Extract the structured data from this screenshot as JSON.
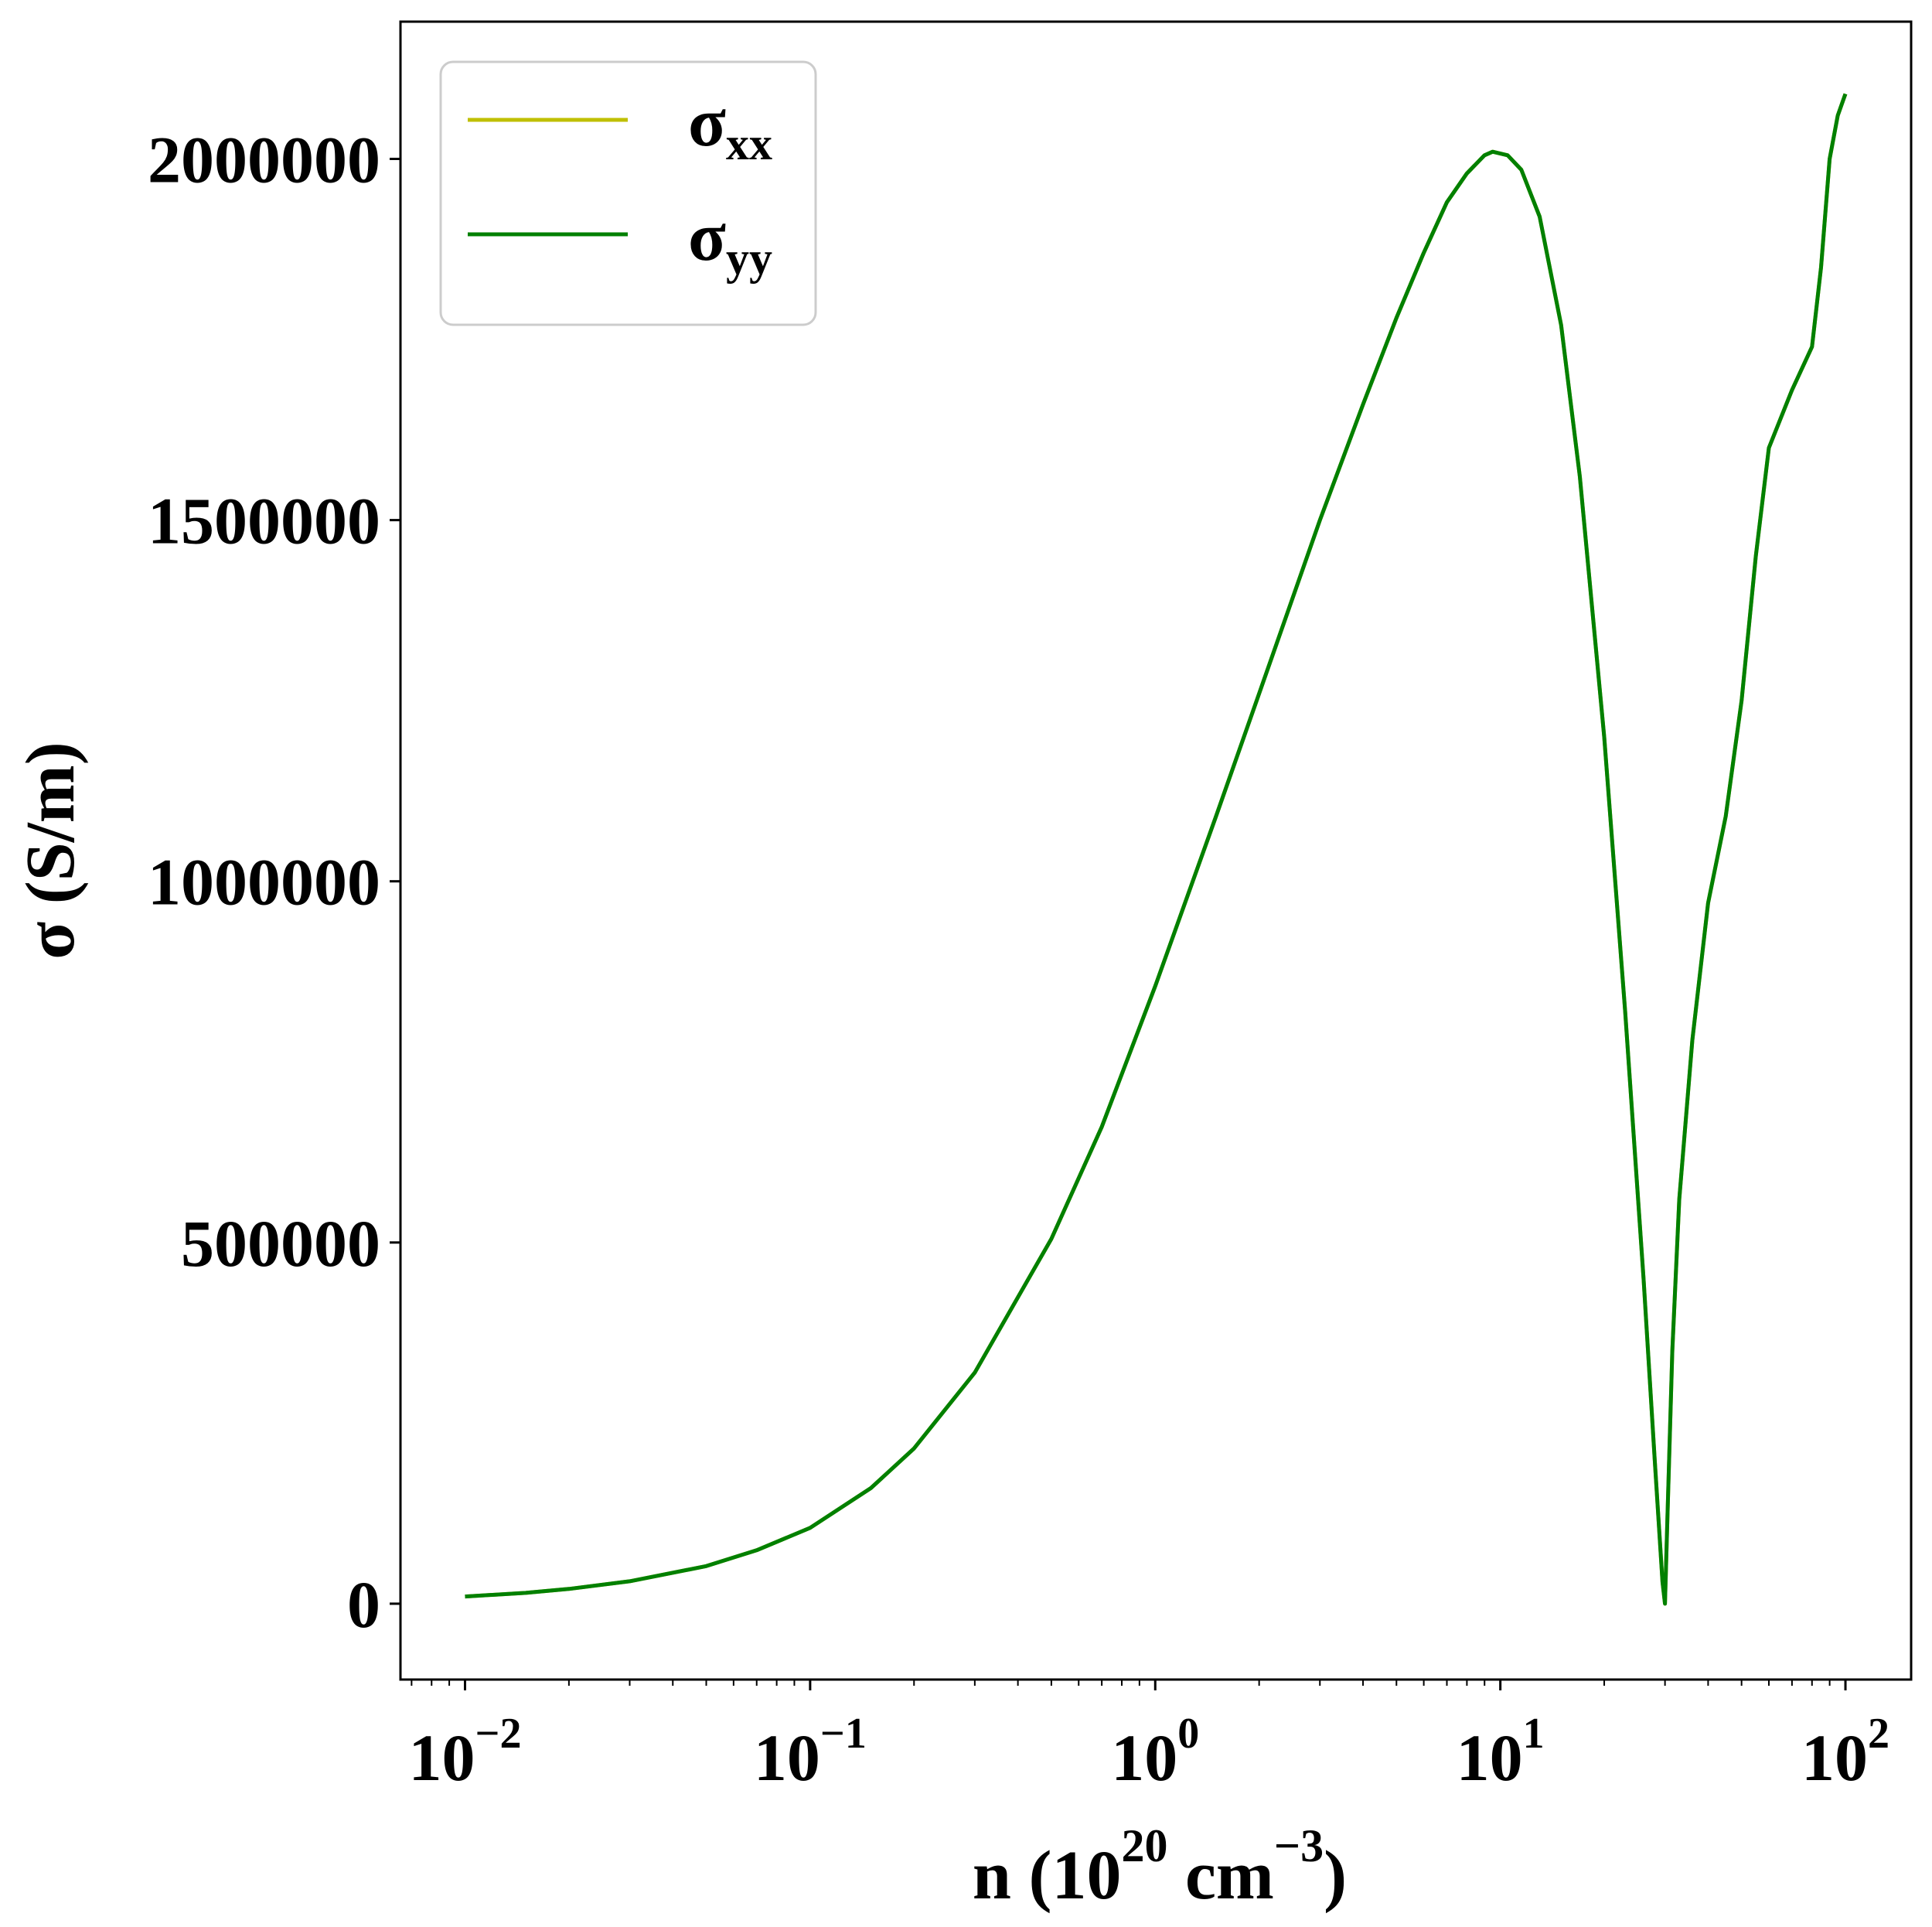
{
  "chart_data": {
    "type": "line",
    "x_scale": "log",
    "xlim": [
      0.0065,
      155
    ],
    "ylim": [
      -105000,
      2190000
    ],
    "grid": false,
    "legend_position": "top-left",
    "xlabel": {
      "main": "n (10",
      "sup1": "20",
      "mid": " cm",
      "sup2": "−3",
      "end": ")"
    },
    "ylabel": "σ (S/m)",
    "y_ticks": [
      {
        "value": 0,
        "label": "0"
      },
      {
        "value": 500000,
        "label": "500000"
      },
      {
        "value": 1000000,
        "label": "1000000"
      },
      {
        "value": 1500000,
        "label": "1500000"
      },
      {
        "value": 2000000,
        "label": "2000000"
      }
    ],
    "x_ticks": [
      {
        "value": 0.01,
        "base": "10",
        "exp": "−2"
      },
      {
        "value": 0.1,
        "base": "10",
        "exp": "−1"
      },
      {
        "value": 1,
        "base": "10",
        "exp": "0"
      },
      {
        "value": 10,
        "base": "10",
        "exp": "1"
      },
      {
        "value": 100,
        "base": "10",
        "exp": "2"
      }
    ],
    "series": [
      {
        "name": "σ",
        "sub": "xx",
        "color": "#bfbf00",
        "points": [
          [
            0.01,
            10000
          ],
          [
            0.015,
            15000
          ],
          [
            0.02,
            20500
          ],
          [
            0.03,
            31000
          ],
          [
            0.05,
            52000
          ],
          [
            0.07,
            74000
          ],
          [
            0.1,
            105000
          ],
          [
            0.15,
            160000
          ],
          [
            0.2,
            215000
          ],
          [
            0.3,
            320000
          ],
          [
            0.5,
            505000
          ],
          [
            0.7,
            660000
          ],
          [
            1.0,
            855000
          ],
          [
            1.5,
            1090000
          ],
          [
            2.0,
            1260000
          ],
          [
            3.0,
            1500000
          ],
          [
            4.0,
            1660000
          ],
          [
            5.0,
            1780000
          ],
          [
            6.0,
            1870000
          ],
          [
            7.0,
            1940000
          ],
          [
            8.0,
            1980000
          ],
          [
            9.0,
            2005000
          ],
          [
            9.5,
            2010000
          ],
          [
            10.5,
            2005000
          ],
          [
            11.5,
            1985000
          ],
          [
            13.0,
            1920000
          ],
          [
            15.0,
            1770000
          ],
          [
            17.0,
            1560000
          ],
          [
            20.0,
            1200000
          ],
          [
            23.0,
            820000
          ],
          [
            26.0,
            450000
          ],
          [
            28.0,
            200000
          ],
          [
            29.5,
            30000
          ],
          [
            30.0,
            0
          ],
          [
            30.5,
            120000
          ],
          [
            31.5,
            350000
          ],
          [
            33.0,
            560000
          ],
          [
            36.0,
            780000
          ],
          [
            40.0,
            970000
          ],
          [
            45.0,
            1090000
          ],
          [
            50.0,
            1250000
          ],
          [
            55.0,
            1450000
          ],
          [
            60.0,
            1600000
          ],
          [
            70.0,
            1680000
          ],
          [
            80.0,
            1740000
          ],
          [
            85.0,
            1850000
          ],
          [
            90.0,
            2000000
          ],
          [
            95.0,
            2060000
          ],
          [
            100.0,
            2090000
          ]
        ]
      },
      {
        "name": "σ",
        "sub": "yy",
        "color": "#008000",
        "points": [
          [
            0.01,
            10000
          ],
          [
            0.015,
            15000
          ],
          [
            0.02,
            20500
          ],
          [
            0.03,
            31000
          ],
          [
            0.05,
            52000
          ],
          [
            0.07,
            74000
          ],
          [
            0.1,
            105000
          ],
          [
            0.15,
            160000
          ],
          [
            0.2,
            215000
          ],
          [
            0.3,
            320000
          ],
          [
            0.5,
            505000
          ],
          [
            0.7,
            660000
          ],
          [
            1.0,
            855000
          ],
          [
            1.5,
            1090000
          ],
          [
            2.0,
            1260000
          ],
          [
            3.0,
            1500000
          ],
          [
            4.0,
            1660000
          ],
          [
            5.0,
            1780000
          ],
          [
            6.0,
            1870000
          ],
          [
            7.0,
            1940000
          ],
          [
            8.0,
            1980000
          ],
          [
            9.0,
            2005000
          ],
          [
            9.5,
            2010000
          ],
          [
            10.5,
            2005000
          ],
          [
            11.5,
            1985000
          ],
          [
            13.0,
            1920000
          ],
          [
            15.0,
            1770000
          ],
          [
            17.0,
            1560000
          ],
          [
            20.0,
            1200000
          ],
          [
            23.0,
            820000
          ],
          [
            26.0,
            450000
          ],
          [
            28.0,
            200000
          ],
          [
            29.5,
            30000
          ],
          [
            30.0,
            0
          ],
          [
            30.5,
            120000
          ],
          [
            31.5,
            350000
          ],
          [
            33.0,
            560000
          ],
          [
            36.0,
            780000
          ],
          [
            40.0,
            970000
          ],
          [
            45.0,
            1090000
          ],
          [
            50.0,
            1250000
          ],
          [
            55.0,
            1450000
          ],
          [
            60.0,
            1600000
          ],
          [
            70.0,
            1680000
          ],
          [
            80.0,
            1740000
          ],
          [
            85.0,
            1850000
          ],
          [
            90.0,
            2000000
          ],
          [
            95.0,
            2060000
          ],
          [
            100.0,
            2090000
          ]
        ]
      }
    ]
  }
}
